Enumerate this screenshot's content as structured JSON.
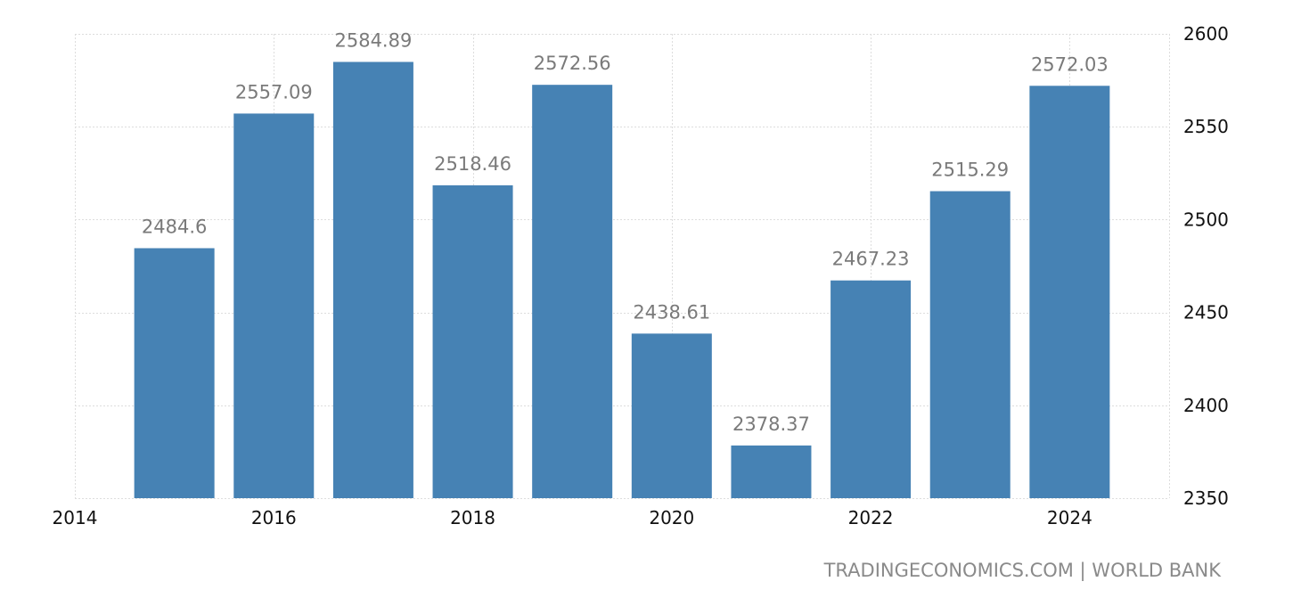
{
  "chart_data": {
    "type": "bar",
    "x": [
      2015,
      2016,
      2017,
      2018,
      2019,
      2020,
      2021,
      2022,
      2023,
      2024
    ],
    "values": [
      2484.6,
      2557.09,
      2584.89,
      2518.46,
      2572.56,
      2438.61,
      2378.37,
      2467.23,
      2515.29,
      2572.03
    ],
    "value_labels": [
      "2484.6",
      "2557.09",
      "2584.89",
      "2518.46",
      "2572.56",
      "2438.61",
      "2378.37",
      "2467.23",
      "2515.29",
      "2572.03"
    ],
    "x_ticks": [
      "2014",
      "2016",
      "2018",
      "2020",
      "2022",
      "2024"
    ],
    "x_tick_values": [
      2014,
      2016,
      2018,
      2020,
      2022,
      2024
    ],
    "y_ticks": [
      "2600",
      "2550",
      "2500",
      "2450",
      "2400",
      "2350"
    ],
    "y_tick_values": [
      2600,
      2550,
      2500,
      2450,
      2400,
      2350
    ],
    "ylim": [
      2350,
      2600
    ],
    "xlim": [
      2014,
      2025
    ],
    "y_axis_side": "right",
    "grid": true,
    "bar_color": "#4682b4",
    "label_color": "#7a7a7a"
  },
  "footer": {
    "source": "TRADINGECONOMICS.COM | WORLD BANK"
  }
}
